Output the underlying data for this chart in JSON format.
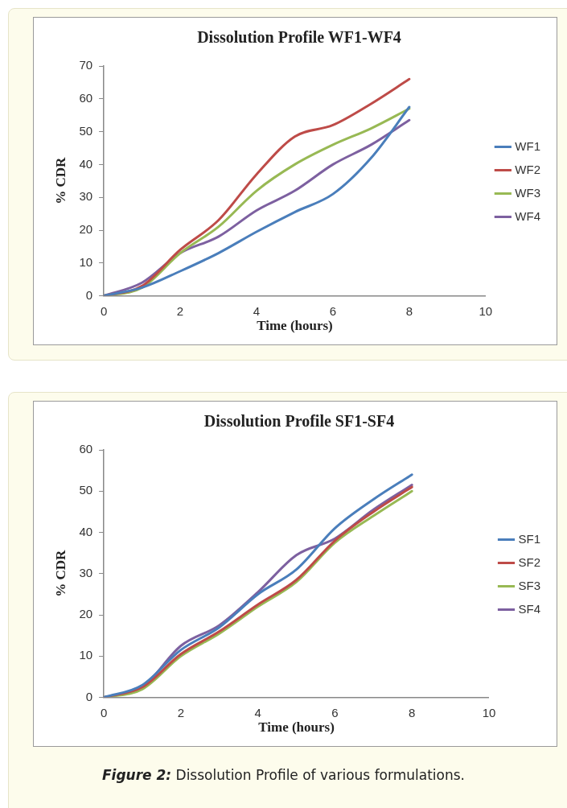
{
  "chart_data": [
    {
      "type": "line",
      "title": "Dissolution Profile WF1-WF4",
      "xlabel": "Time (hours)",
      "ylabel": "% CDR",
      "x": [
        0,
        1,
        2,
        3,
        4,
        5,
        6,
        7,
        8
      ],
      "xlim": [
        0,
        10
      ],
      "xticks": [
        0,
        2,
        4,
        6,
        8,
        10
      ],
      "ylim": [
        0,
        70
      ],
      "yticks": [
        0,
        10,
        20,
        30,
        40,
        50,
        60,
        70
      ],
      "grid": false,
      "legend": "right",
      "marker": "none",
      "line_style": "solid",
      "series": [
        {
          "name": "WF1",
          "color": "#4a7ebb",
          "values": [
            0,
            2.5,
            7.5,
            13,
            19.5,
            25.5,
            31,
            42,
            57.5
          ]
        },
        {
          "name": "WF2",
          "color": "#be4b48",
          "values": [
            0,
            3,
            14,
            23,
            37,
            48.5,
            52,
            58.5,
            66
          ]
        },
        {
          "name": "WF3",
          "color": "#98b954",
          "values": [
            0,
            2.5,
            13,
            21,
            32,
            40,
            46,
            51,
            57
          ]
        },
        {
          "name": "WF4",
          "color": "#7d60a0",
          "values": [
            0,
            4,
            13,
            18,
            26,
            32,
            40,
            46,
            53.5
          ]
        }
      ]
    },
    {
      "type": "line",
      "title": "Dissolution Profile SF1-SF4",
      "xlabel": "Time (hours)",
      "ylabel": "% CDR",
      "x": [
        0,
        1,
        2,
        3,
        4,
        5,
        6,
        7,
        8
      ],
      "xlim": [
        0,
        10
      ],
      "xticks": [
        0,
        2,
        4,
        6,
        8,
        10
      ],
      "ylim": [
        0,
        60
      ],
      "yticks": [
        0,
        10,
        20,
        30,
        40,
        50,
        60
      ],
      "grid": false,
      "legend": "right",
      "marker": "none",
      "line_style": "solid",
      "annotations": [
        "Figure 2: Dissolution Profile of various formulations."
      ],
      "series": [
        {
          "name": "SF1",
          "color": "#4a7ebb",
          "values": [
            0,
            3,
            11.5,
            17,
            25,
            31,
            41,
            48,
            54
          ]
        },
        {
          "name": "SF2",
          "color": "#be4b48",
          "values": [
            0,
            2.5,
            10.5,
            16,
            22.5,
            28.5,
            38,
            45,
            51
          ]
        },
        {
          "name": "SF3",
          "color": "#98b954",
          "values": [
            0,
            2,
            10,
            15.5,
            22,
            28,
            37.5,
            44,
            50
          ]
        },
        {
          "name": "SF4",
          "color": "#7d60a0",
          "values": [
            0,
            2.5,
            12.5,
            17.5,
            25.5,
            34.5,
            38.5,
            45.5,
            51.5
          ]
        }
      ]
    }
  ]
}
